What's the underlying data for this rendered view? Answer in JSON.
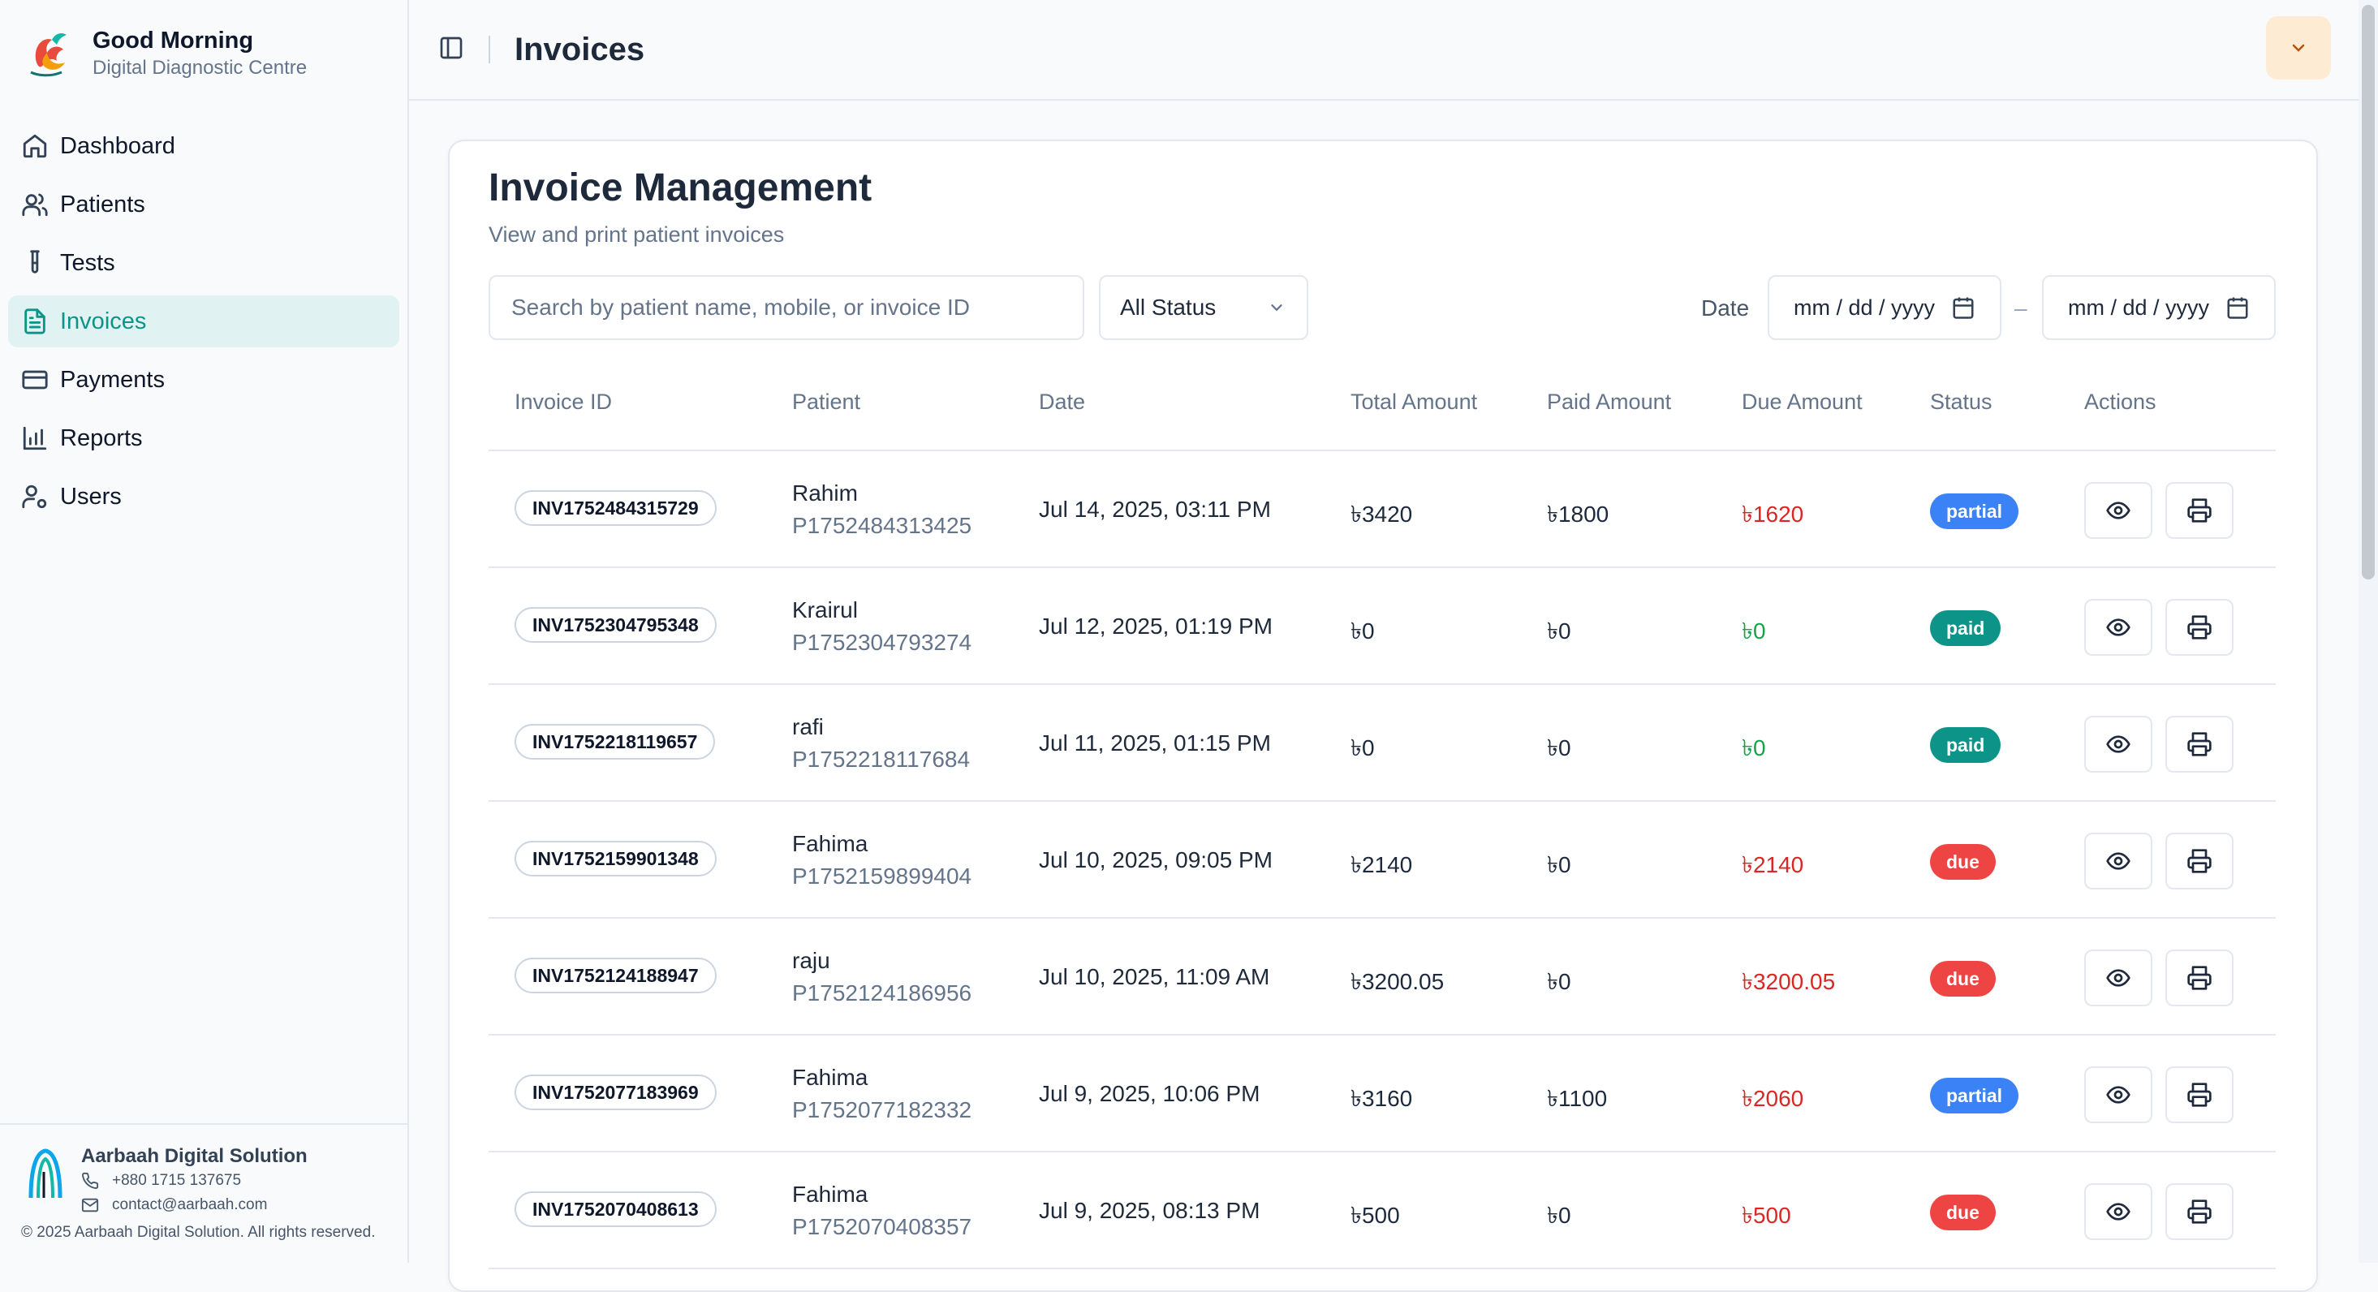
{
  "sidebar": {
    "brand_title": "Good Morning",
    "brand_subtitle": "Digital Diagnostic Centre",
    "items": [
      {
        "label": "Dashboard",
        "icon": "home-icon"
      },
      {
        "label": "Patients",
        "icon": "users-icon"
      },
      {
        "label": "Tests",
        "icon": "test-tube-icon"
      },
      {
        "label": "Invoices",
        "icon": "file-text-icon",
        "active": true
      },
      {
        "label": "Payments",
        "icon": "credit-card-icon"
      },
      {
        "label": "Reports",
        "icon": "bar-chart-icon"
      },
      {
        "label": "Users",
        "icon": "user-cog-icon"
      }
    ],
    "footer": {
      "company": "Aarbaah Digital Solution",
      "phone": "+880 1715 137675",
      "email": "contact@aarbaah.com",
      "copyright": "© 2025 Aarbaah Digital Solution. All rights reserved."
    }
  },
  "header": {
    "title": "Invoices"
  },
  "main": {
    "title": "Invoice Management",
    "subtitle": "View and print patient invoices",
    "search_placeholder": "Search by patient name, mobile, or invoice ID",
    "status_filter": "All Status",
    "date_label": "Date",
    "date_from": "mm / dd / yyyy",
    "date_separator": "–",
    "date_to": "mm / dd / yyyy",
    "columns": [
      "Invoice ID",
      "Patient",
      "Date",
      "Total Amount",
      "Paid Amount",
      "Due Amount",
      "Status",
      "Actions"
    ],
    "rows": [
      {
        "id": "INV1752484315729",
        "name": "Rahim",
        "pid": "P1752484313425",
        "date": "Jul 14, 2025, 03:11 PM",
        "total": "৳3420",
        "paid": "৳1800",
        "due": "৳1620",
        "status": "partial"
      },
      {
        "id": "INV1752304795348",
        "name": "Krairul",
        "pid": "P1752304793274",
        "date": "Jul 12, 2025, 01:19 PM",
        "total": "৳0",
        "paid": "৳0",
        "due": "৳0",
        "status": "paid"
      },
      {
        "id": "INV1752218119657",
        "name": "rafi",
        "pid": "P1752218117684",
        "date": "Jul 11, 2025, 01:15 PM",
        "total": "৳0",
        "paid": "৳0",
        "due": "৳0",
        "status": "paid"
      },
      {
        "id": "INV1752159901348",
        "name": "Fahima",
        "pid": "P1752159899404",
        "date": "Jul 10, 2025, 09:05 PM",
        "total": "৳2140",
        "paid": "৳0",
        "due": "৳2140",
        "status": "due"
      },
      {
        "id": "INV1752124188947",
        "name": "raju",
        "pid": "P1752124186956",
        "date": "Jul 10, 2025, 11:09 AM",
        "total": "৳3200.05",
        "paid": "৳0",
        "due": "৳3200.05",
        "status": "due"
      },
      {
        "id": "INV1752077183969",
        "name": "Fahima",
        "pid": "P1752077182332",
        "date": "Jul 9, 2025, 10:06 PM",
        "total": "৳3160",
        "paid": "৳1100",
        "due": "৳2060",
        "status": "partial"
      },
      {
        "id": "INV1752070408613",
        "name": "Fahima",
        "pid": "P1752070408357",
        "date": "Jul 9, 2025, 08:13 PM",
        "total": "৳500",
        "paid": "৳0",
        "due": "৳500",
        "status": "due"
      }
    ]
  },
  "colors": {
    "accent": "#0d9488",
    "partial": "#3b82f6",
    "paid": "#0d9488",
    "due": "#ef4444",
    "due_text": "#dc2626",
    "zero_due_text": "#16a34a"
  }
}
